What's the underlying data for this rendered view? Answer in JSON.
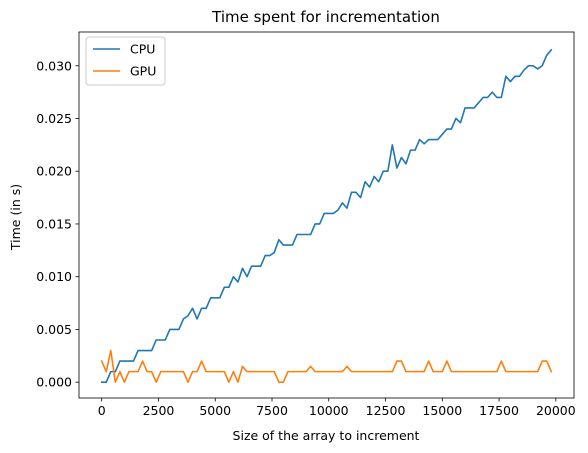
{
  "chart_data": {
    "type": "line",
    "title": "Time spent for incrementation",
    "xlabel": "Size of the array to increment",
    "ylabel": "Time (in s)",
    "xlim": [
      -1000,
      20800
    ],
    "ylim": [
      -0.0015,
      0.0332
    ],
    "xticks": [
      0,
      2500,
      5000,
      7500,
      10000,
      12500,
      15000,
      17500,
      20000
    ],
    "xtick_labels": [
      "0",
      "2500",
      "5000",
      "7500",
      "10000",
      "12500",
      "15000",
      "17500",
      "20000"
    ],
    "yticks": [
      0.0,
      0.005,
      0.01,
      0.015,
      0.02,
      0.025,
      0.03
    ],
    "ytick_labels": [
      "0.000",
      "0.005",
      "0.010",
      "0.015",
      "0.020",
      "0.025",
      "0.030"
    ],
    "grid": false,
    "legend_position": "upper-left",
    "x": [
      0,
      200,
      400,
      600,
      800,
      1000,
      1200,
      1400,
      1600,
      1800,
      2000,
      2200,
      2400,
      2600,
      2800,
      3000,
      3200,
      3400,
      3600,
      3800,
      4000,
      4200,
      4400,
      4600,
      4800,
      5000,
      5200,
      5400,
      5600,
      5800,
      6000,
      6200,
      6400,
      6600,
      6800,
      7000,
      7200,
      7400,
      7600,
      7800,
      8000,
      8200,
      8400,
      8600,
      8800,
      9000,
      9200,
      9400,
      9600,
      9800,
      10000,
      10200,
      10400,
      10600,
      10800,
      11000,
      11200,
      11400,
      11600,
      11800,
      12000,
      12200,
      12400,
      12600,
      12800,
      13000,
      13200,
      13400,
      13600,
      13800,
      14000,
      14200,
      14400,
      14600,
      14800,
      15000,
      15200,
      15400,
      15600,
      15800,
      16000,
      16200,
      16400,
      16600,
      16800,
      17000,
      17200,
      17400,
      17600,
      17800,
      18000,
      18200,
      18400,
      18600,
      18800,
      19000,
      19200,
      19400,
      19600,
      19800
    ],
    "series": [
      {
        "name": "CPU",
        "color": "#1f77b4",
        "values": [
          0.0,
          0.0,
          0.001,
          0.001,
          0.002,
          0.002,
          0.002,
          0.002,
          0.003,
          0.003,
          0.003,
          0.003,
          0.004,
          0.004,
          0.004,
          0.005,
          0.005,
          0.005,
          0.006,
          0.0063,
          0.007,
          0.006,
          0.007,
          0.007,
          0.008,
          0.008,
          0.008,
          0.009,
          0.009,
          0.01,
          0.0095,
          0.0108,
          0.01,
          0.011,
          0.011,
          0.011,
          0.012,
          0.012,
          0.0123,
          0.0135,
          0.013,
          0.013,
          0.013,
          0.014,
          0.014,
          0.014,
          0.014,
          0.015,
          0.015,
          0.016,
          0.016,
          0.016,
          0.0163,
          0.017,
          0.0165,
          0.018,
          0.018,
          0.0175,
          0.019,
          0.0185,
          0.0195,
          0.019,
          0.02,
          0.02,
          0.0225,
          0.0203,
          0.0213,
          0.0207,
          0.022,
          0.022,
          0.023,
          0.0226,
          0.023,
          0.023,
          0.023,
          0.0235,
          0.024,
          0.024,
          0.025,
          0.0246,
          0.026,
          0.026,
          0.026,
          0.0265,
          0.027,
          0.027,
          0.0275,
          0.027,
          0.027,
          0.029,
          0.0285,
          0.029,
          0.029,
          0.0296,
          0.03,
          0.03,
          0.0297,
          0.03,
          0.031,
          0.0315
        ]
      },
      {
        "name": "GPU",
        "color": "#ff7f0e",
        "values": [
          0.002,
          0.001,
          0.003,
          0.0,
          0.001,
          0.0,
          0.001,
          0.001,
          0.001,
          0.002,
          0.001,
          0.001,
          0.0,
          0.001,
          0.001,
          0.001,
          0.001,
          0.001,
          0.001,
          0.0,
          0.001,
          0.001,
          0.002,
          0.001,
          0.001,
          0.001,
          0.001,
          0.001,
          0.0,
          0.001,
          0.0,
          0.0015,
          0.001,
          0.001,
          0.001,
          0.001,
          0.001,
          0.001,
          0.001,
          0.0,
          0.0,
          0.001,
          0.001,
          0.001,
          0.001,
          0.001,
          0.0015,
          0.001,
          0.001,
          0.001,
          0.001,
          0.001,
          0.001,
          0.001,
          0.0015,
          0.001,
          0.001,
          0.001,
          0.001,
          0.001,
          0.001,
          0.001,
          0.001,
          0.001,
          0.001,
          0.002,
          0.002,
          0.001,
          0.001,
          0.001,
          0.001,
          0.001,
          0.002,
          0.001,
          0.001,
          0.001,
          0.002,
          0.001,
          0.001,
          0.001,
          0.001,
          0.001,
          0.001,
          0.001,
          0.001,
          0.001,
          0.001,
          0.001,
          0.002,
          0.001,
          0.001,
          0.001,
          0.001,
          0.001,
          0.001,
          0.001,
          0.001,
          0.002,
          0.002,
          0.001
        ]
      }
    ]
  }
}
